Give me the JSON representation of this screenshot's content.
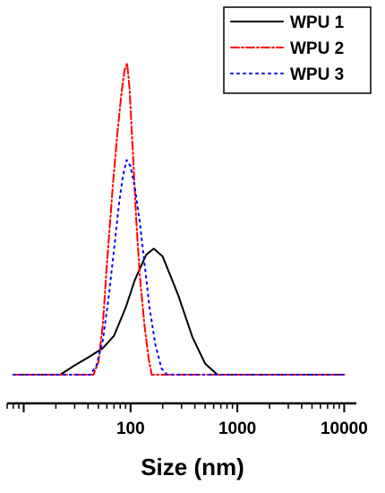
{
  "chart_data": {
    "type": "line",
    "title": "",
    "xlabel": "Size (nm)",
    "ylabel": "",
    "xscale": "log",
    "xlim": [
      7,
      13000
    ],
    "ylim": [
      0,
      1.06
    ],
    "x_ticks": [
      100,
      1000,
      10000
    ],
    "x_tick_labels": [
      "100",
      "1000",
      "10000"
    ],
    "y_axis_visible": false,
    "grid": false,
    "legend_position": "top-right",
    "series": [
      {
        "name": "WPU 1",
        "color": "#000000",
        "line_style": "solid",
        "x": [
          8,
          22,
          30,
          40,
          55,
          70,
          90,
          110,
          140,
          165,
          200,
          280,
          380,
          500,
          650,
          800,
          10000
        ],
        "y": [
          0,
          0,
          0.03,
          0.055,
          0.085,
          0.125,
          0.215,
          0.305,
          0.385,
          0.405,
          0.38,
          0.255,
          0.12,
          0.035,
          0,
          0,
          0
        ]
      },
      {
        "name": "WPU 2",
        "color": "#ff0000",
        "line_style": "dash-dot",
        "x": [
          8,
          45,
          50,
          55,
          60,
          68,
          75,
          82,
          88,
          93,
          98,
          105,
          113,
          122,
          135,
          148,
          158,
          170,
          10000
        ],
        "y": [
          0,
          0,
          0.04,
          0.16,
          0.35,
          0.6,
          0.77,
          0.9,
          0.98,
          1.0,
          0.92,
          0.72,
          0.5,
          0.32,
          0.16,
          0.05,
          0,
          0,
          0
        ]
      },
      {
        "name": "WPU 3",
        "color": "#0000ff",
        "line_style": "dotted",
        "x": [
          8,
          42,
          48,
          55,
          62,
          70,
          78,
          85,
          92,
          100,
          110,
          122,
          135,
          150,
          170,
          195,
          220,
          10000
        ],
        "y": [
          0,
          0,
          0.03,
          0.11,
          0.24,
          0.4,
          0.55,
          0.64,
          0.69,
          0.67,
          0.6,
          0.49,
          0.36,
          0.22,
          0.1,
          0.02,
          0,
          0
        ]
      }
    ]
  }
}
